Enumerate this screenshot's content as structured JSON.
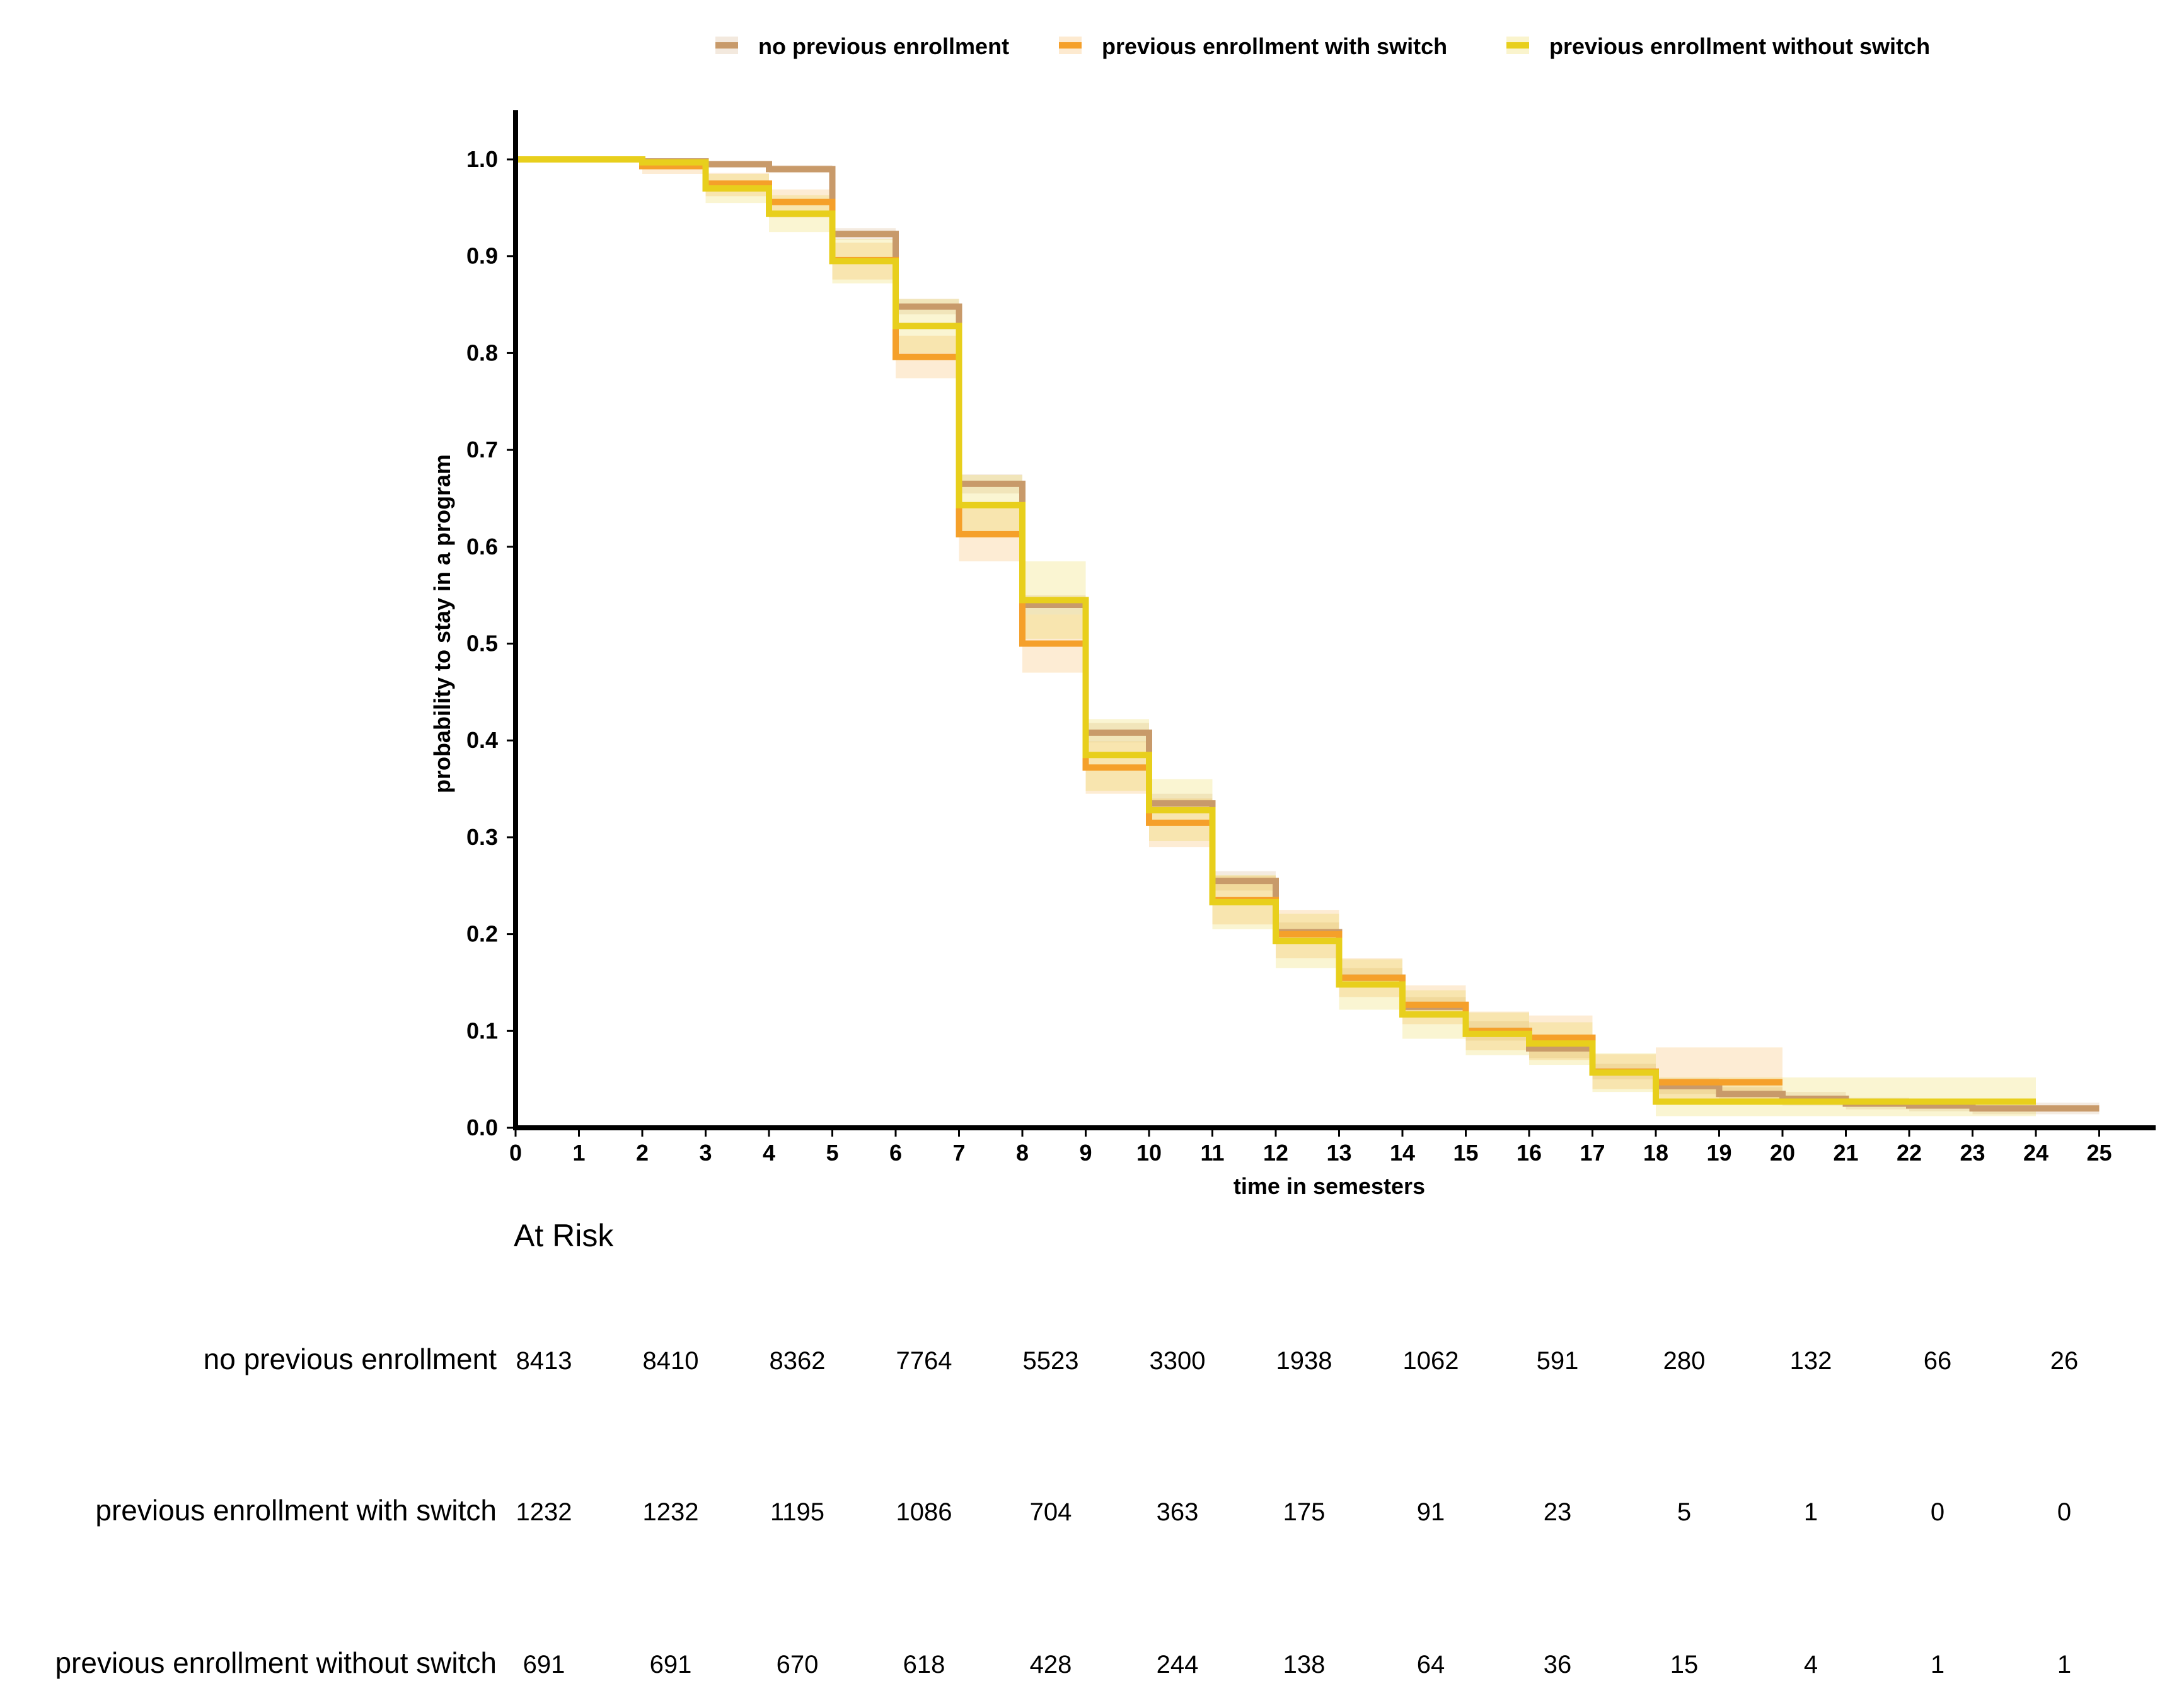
{
  "chart_data": {
    "type": "line",
    "subtype": "kaplan-meier-step",
    "xlabel": "time in semesters",
    "ylabel": "probability to stay in a program",
    "xlim": [
      0,
      26
    ],
    "ylim": [
      0,
      1.05
    ],
    "xticks": [
      0,
      1,
      2,
      3,
      4,
      5,
      6,
      7,
      8,
      9,
      10,
      11,
      12,
      13,
      14,
      15,
      16,
      17,
      18,
      19,
      20,
      21,
      22,
      23,
      24,
      25
    ],
    "xtick_labels": [
      "0",
      "1",
      "2",
      "3",
      "4",
      "5",
      "6",
      "7",
      "8",
      "9",
      "10",
      "11",
      "12",
      "13",
      "14",
      "15",
      "16",
      "17",
      "18",
      "19",
      "20",
      "21",
      "22",
      "23",
      "24",
      "25"
    ],
    "yticks": [
      0,
      0.1,
      0.2,
      0.3,
      0.4,
      0.5,
      0.6,
      0.7,
      0.8,
      0.9,
      1.0
    ],
    "ytick_labels": [
      "0.0",
      "0.1",
      "0.2",
      "0.3",
      "0.4",
      "0.5",
      "0.6",
      "0.7",
      "0.8",
      "0.9",
      "1.0"
    ],
    "legend_position": "top",
    "series": [
      {
        "name": "no previous enrollment",
        "color": "#c89a6a",
        "x": [
          0,
          1,
          2,
          3,
          4,
          5,
          6,
          7,
          8,
          9,
          10,
          11,
          12,
          13,
          14,
          15,
          16,
          17,
          18,
          19,
          20,
          21,
          22,
          23,
          24,
          25
        ],
        "y": [
          1.0,
          1.0,
          0.998,
          0.995,
          0.99,
          0.923,
          0.848,
          0.665,
          0.54,
          0.408,
          0.335,
          0.255,
          0.202,
          0.155,
          0.125,
          0.1,
          0.082,
          0.058,
          0.043,
          0.035,
          0.03,
          0.025,
          0.023,
          0.02,
          0.02,
          0.02
        ],
        "ci_lower": [
          1.0,
          1.0,
          0.996,
          0.992,
          0.986,
          0.917,
          0.84,
          0.655,
          0.53,
          0.398,
          0.325,
          0.245,
          0.192,
          0.145,
          0.115,
          0.09,
          0.072,
          0.05,
          0.035,
          0.028,
          0.023,
          0.019,
          0.017,
          0.014,
          0.014,
          0.014
        ],
        "ci_upper": [
          1.0,
          1.0,
          1.0,
          0.998,
          0.994,
          0.929,
          0.856,
          0.675,
          0.55,
          0.418,
          0.345,
          0.265,
          0.212,
          0.165,
          0.135,
          0.11,
          0.092,
          0.066,
          0.051,
          0.042,
          0.037,
          0.031,
          0.029,
          0.026,
          0.026,
          0.026
        ]
      },
      {
        "name": "previous enrollment with switch",
        "color": "#f5a02a",
        "x": [
          0,
          1,
          2,
          3,
          4,
          5,
          6,
          7,
          8,
          9,
          10,
          11,
          12,
          13,
          14,
          15,
          16,
          17,
          18,
          19,
          20
        ],
        "y": [
          1.0,
          1.0,
          0.993,
          0.975,
          0.956,
          0.896,
          0.796,
          0.613,
          0.5,
          0.372,
          0.315,
          0.235,
          0.2,
          0.155,
          0.127,
          0.1,
          0.093,
          0.058,
          0.047,
          0.047,
          0.047
        ],
        "ci_lower": [
          1.0,
          1.0,
          0.985,
          0.962,
          0.94,
          0.876,
          0.774,
          0.585,
          0.47,
          0.345,
          0.29,
          0.21,
          0.175,
          0.135,
          0.107,
          0.08,
          0.07,
          0.04,
          0.025,
          0.025,
          0.025
        ],
        "ci_upper": [
          1.0,
          1.0,
          1.0,
          0.986,
          0.969,
          0.914,
          0.818,
          0.641,
          0.53,
          0.399,
          0.34,
          0.26,
          0.225,
          0.175,
          0.147,
          0.12,
          0.116,
          0.076,
          0.083,
          0.083,
          0.083
        ]
      },
      {
        "name": "previous enrollment without switch",
        "color": "#e8cf1c",
        "x": [
          0,
          1,
          2,
          3,
          4,
          5,
          6,
          7,
          8,
          9,
          10,
          11,
          12,
          13,
          14,
          15,
          16,
          17,
          18,
          19,
          20,
          21,
          22,
          23,
          24
        ],
        "y": [
          1.0,
          1.0,
          0.997,
          0.97,
          0.944,
          0.895,
          0.828,
          0.643,
          0.545,
          0.385,
          0.328,
          0.233,
          0.193,
          0.148,
          0.117,
          0.097,
          0.087,
          0.057,
          0.027,
          0.027,
          0.027,
          0.027,
          0.027,
          0.027,
          0.027
        ],
        "ci_lower": [
          1.0,
          1.0,
          0.99,
          0.955,
          0.925,
          0.872,
          0.8,
          0.612,
          0.505,
          0.348,
          0.296,
          0.205,
          0.165,
          0.122,
          0.092,
          0.075,
          0.065,
          0.037,
          0.012,
          0.012,
          0.012,
          0.012,
          0.012,
          0.012,
          0.012
        ],
        "ci_upper": [
          1.0,
          1.0,
          1.0,
          0.985,
          0.963,
          0.918,
          0.856,
          0.674,
          0.585,
          0.422,
          0.36,
          0.261,
          0.221,
          0.174,
          0.142,
          0.119,
          0.109,
          0.077,
          0.052,
          0.052,
          0.052,
          0.052,
          0.052,
          0.052,
          0.052
        ]
      }
    ],
    "at_risk": {
      "title": "At Risk",
      "times": [
        0,
        2,
        4,
        6,
        8,
        10,
        12,
        14,
        16,
        18,
        20,
        22,
        24
      ],
      "rows": [
        {
          "label": "no previous enrollment",
          "values": [
            "8413",
            "8410",
            "8362",
            "7764",
            "5523",
            "3300",
            "1938",
            "1062",
            "591",
            "280",
            "132",
            "66",
            "26"
          ]
        },
        {
          "label": "previous enrollment with switch",
          "values": [
            "1232",
            "1232",
            "1195",
            "1086",
            "704",
            "363",
            "175",
            "91",
            "23",
            "5",
            "1",
            "0",
            "0"
          ]
        },
        {
          "label": "previous enrollment without switch",
          "values": [
            "691",
            "691",
            "670",
            "618",
            "428",
            "244",
            "138",
            "64",
            "36",
            "15",
            "4",
            "1",
            "1"
          ]
        }
      ]
    }
  }
}
